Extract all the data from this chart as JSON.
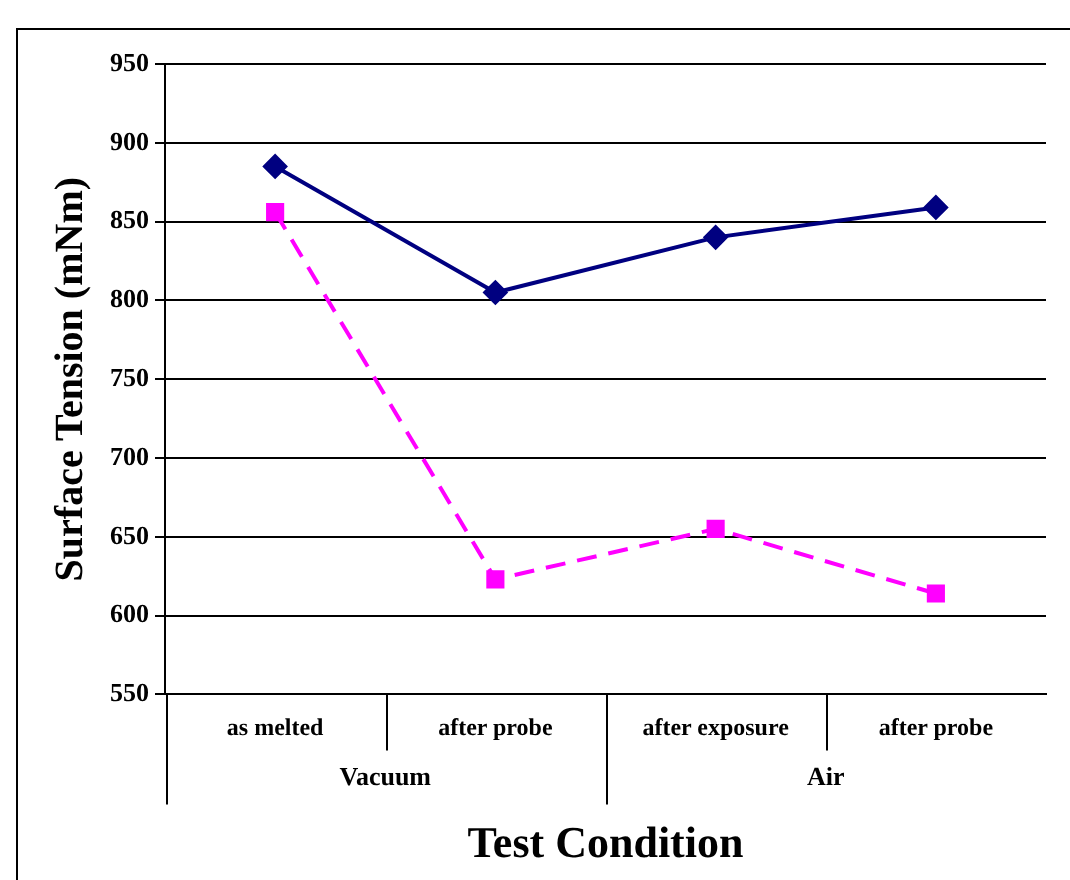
{
  "chart_data": {
    "type": "line",
    "xlabel": "Test Condition",
    "ylabel": "Surface Tension (mNm)",
    "categories": [
      "as melted",
      "after probe",
      "after exposure",
      "after probe"
    ],
    "annotations": [
      "Vacuum",
      "Air"
    ],
    "series": [
      {
        "color": "#000080",
        "values": [
          885,
          805,
          840,
          859
        ],
        "marker": "diamond",
        "line_style": "solid"
      },
      {
        "color": "#ff00ff",
        "values": [
          856,
          623,
          655,
          614
        ],
        "marker": "square",
        "line_style": "dashed"
      }
    ],
    "ylim": [
      550,
      950
    ],
    "yticks": [
      550,
      600,
      650,
      700,
      750,
      800,
      850,
      900,
      950
    ],
    "grid": "y",
    "legend": false
  }
}
